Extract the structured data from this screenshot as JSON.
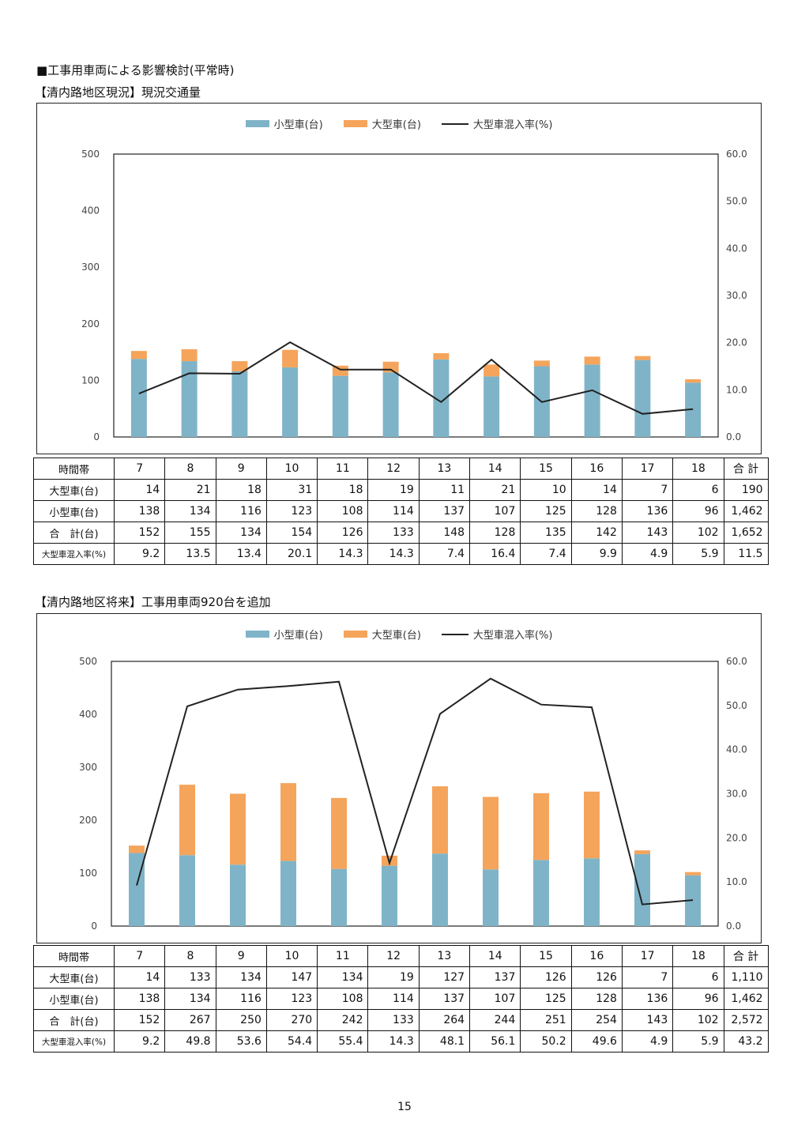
{
  "page": {
    "heading": "■工事用車両による影響検討(平常時)",
    "page_number": "15"
  },
  "colors": {
    "small": "#7fb4c8",
    "large": "#f5a45b",
    "line": "#222222"
  },
  "legend": {
    "small": "小型車(台)",
    "large": "大型車(台)",
    "ratio": "大型車混入率(%)"
  },
  "table_labels": {
    "hour": "時間帯",
    "large": "大型車(台)",
    "small": "小型車(台)",
    "total": "合　計(台)",
    "ratio": "大型車混入率(%)",
    "grand_total": "合 計"
  },
  "chart_data": [
    {
      "type": "bar",
      "title": "【清内路地区現況】現況交通量",
      "categories": [
        "7",
        "8",
        "9",
        "10",
        "11",
        "12",
        "13",
        "14",
        "15",
        "16",
        "17",
        "18"
      ],
      "series": [
        {
          "name": "小型車(台)",
          "type": "bar",
          "stacked": true,
          "axis": "left",
          "values": [
            138,
            134,
            116,
            123,
            108,
            114,
            137,
            107,
            125,
            128,
            136,
            96
          ]
        },
        {
          "name": "大型車(台)",
          "type": "bar",
          "stacked": true,
          "axis": "left",
          "values": [
            14,
            21,
            18,
            31,
            18,
            19,
            11,
            21,
            10,
            14,
            7,
            6
          ]
        },
        {
          "name": "大型車混入率(%)",
          "type": "line",
          "axis": "right",
          "values": [
            9.2,
            13.5,
            13.4,
            20.1,
            14.3,
            14.3,
            7.4,
            16.4,
            7.4,
            9.9,
            4.9,
            5.9
          ]
        }
      ],
      "ylim": [
        0,
        500
      ],
      "yticks": [
        "0",
        "100",
        "200",
        "300",
        "400",
        "500"
      ],
      "y2lim": [
        0,
        60
      ],
      "y2ticks": [
        "0.0",
        "10.0",
        "20.0",
        "30.0",
        "40.0",
        "50.0",
        "60.0"
      ],
      "legend": "top",
      "grid": false,
      "table": {
        "hours": [
          "7",
          "8",
          "9",
          "10",
          "11",
          "12",
          "13",
          "14",
          "15",
          "16",
          "17",
          "18"
        ],
        "large": [
          "14",
          "21",
          "18",
          "31",
          "18",
          "19",
          "11",
          "21",
          "10",
          "14",
          "7",
          "6"
        ],
        "small": [
          "138",
          "134",
          "116",
          "123",
          "108",
          "114",
          "137",
          "107",
          "125",
          "128",
          "136",
          "96"
        ],
        "total": [
          "152",
          "155",
          "134",
          "154",
          "126",
          "133",
          "148",
          "128",
          "135",
          "142",
          "143",
          "102"
        ],
        "ratio": [
          "9.2",
          "13.5",
          "13.4",
          "20.1",
          "14.3",
          "14.3",
          "7.4",
          "16.4",
          "7.4",
          "9.9",
          "4.9",
          "5.9"
        ],
        "sum": {
          "large": "190",
          "small": "1,462",
          "total": "1,652",
          "ratio": "11.5"
        }
      }
    },
    {
      "type": "bar",
      "title": "【清内路地区将来】工事用車両920台を追加",
      "categories": [
        "7",
        "8",
        "9",
        "10",
        "11",
        "12",
        "13",
        "14",
        "15",
        "16",
        "17",
        "18"
      ],
      "series": [
        {
          "name": "小型車(台)",
          "type": "bar",
          "stacked": true,
          "axis": "left",
          "values": [
            138,
            134,
            116,
            123,
            108,
            114,
            137,
            107,
            125,
            128,
            136,
            96
          ]
        },
        {
          "name": "大型車(台)",
          "type": "bar",
          "stacked": true,
          "axis": "left",
          "values": [
            14,
            133,
            134,
            147,
            134,
            19,
            127,
            137,
            126,
            126,
            7,
            6
          ]
        },
        {
          "name": "大型車混入率(%)",
          "type": "line",
          "axis": "right",
          "values": [
            9.2,
            49.8,
            53.6,
            54.4,
            55.4,
            14.3,
            48.1,
            56.1,
            50.2,
            49.6,
            4.9,
            5.9
          ]
        }
      ],
      "ylim": [
        0,
        500
      ],
      "yticks": [
        "0",
        "100",
        "200",
        "300",
        "400",
        "500"
      ],
      "y2lim": [
        0,
        60
      ],
      "y2ticks": [
        "0.0",
        "10.0",
        "20.0",
        "30.0",
        "40.0",
        "50.0",
        "60.0"
      ],
      "legend": "top",
      "grid": false,
      "table": {
        "hours": [
          "7",
          "8",
          "9",
          "10",
          "11",
          "12",
          "13",
          "14",
          "15",
          "16",
          "17",
          "18"
        ],
        "large": [
          "14",
          "133",
          "134",
          "147",
          "134",
          "19",
          "127",
          "137",
          "126",
          "126",
          "7",
          "6"
        ],
        "small": [
          "138",
          "134",
          "116",
          "123",
          "108",
          "114",
          "137",
          "107",
          "125",
          "128",
          "136",
          "96"
        ],
        "total": [
          "152",
          "267",
          "250",
          "270",
          "242",
          "133",
          "264",
          "244",
          "251",
          "254",
          "143",
          "102"
        ],
        "ratio": [
          "9.2",
          "49.8",
          "53.6",
          "54.4",
          "55.4",
          "14.3",
          "48.1",
          "56.1",
          "50.2",
          "49.6",
          "4.9",
          "5.9"
        ],
        "sum": {
          "large": "1,110",
          "small": "1,462",
          "total": "2,572",
          "ratio": "43.2"
        }
      }
    }
  ]
}
